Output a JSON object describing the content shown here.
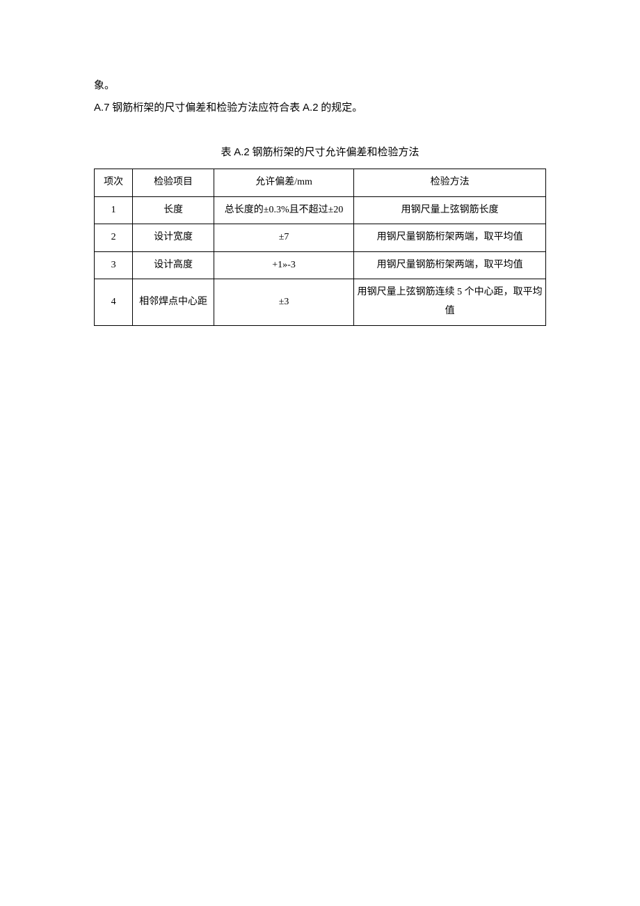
{
  "paragraph": {
    "line1": "象。",
    "line2_prefix": "A.7",
    "line2_mid": " 钢筋桁架的尺寸偏差和检验方法应符合表 ",
    "line2_ref": "A.2",
    "line2_suffix": " 的规定。"
  },
  "tableTitle": {
    "prefix": "表 ",
    "ref": "A.2",
    "suffix": " 钢筋桁架的尺寸允许偏差和检验方法"
  },
  "table": {
    "headers": {
      "col1": "项次",
      "col2": "检验项目",
      "col3_prefix": "允许偏差/",
      "col3_unit": "mm",
      "col4": "检验方法"
    },
    "rows": [
      {
        "num": "1",
        "item": "长度",
        "tolerance": "总长度的±0.3%且不超过±20",
        "method": "用钢尺量上弦钢筋长度"
      },
      {
        "num": "2",
        "item": "设计宽度",
        "tolerance": "±7",
        "method": "用钢尺量钢筋桁架两端，取平均值"
      },
      {
        "num": "3",
        "item": "设计高度",
        "tolerance": "+1»-3",
        "method": "用钢尺量钢筋桁架两端，取平均值"
      },
      {
        "num": "4",
        "item": "相邻焊点中心距",
        "tolerance": "±3",
        "method": "用钢尺量上弦钢筋连续 5 个中心距，取平均值"
      }
    ]
  },
  "style": {
    "background": "#ffffff",
    "textColor": "#000000",
    "borderColor": "#000000",
    "bodyFontSize": 15,
    "tableFontSize": 14
  }
}
